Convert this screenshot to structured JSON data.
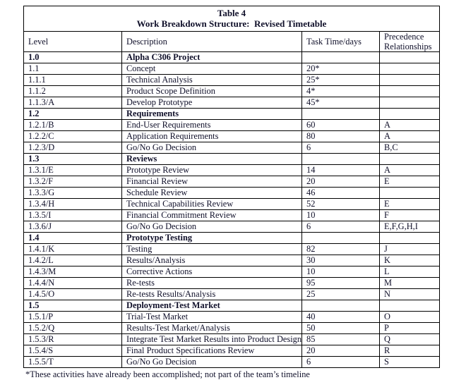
{
  "page": {
    "title_line1": "Table 4",
    "title_line2": "Work Breakdown Structure:  Revised Timetable",
    "footnote": "*These activities have already been accomplished; not part of the team’s timeline"
  },
  "colors": {
    "background": "#ffffff",
    "text": "#10102a",
    "border": "#000000"
  },
  "table": {
    "columns": [
      "Level",
      "Description",
      "Task Time/days",
      "Precedence Relationships"
    ],
    "rows": [
      {
        "level": "1.0",
        "description": "Alpha C306 Project",
        "task_time": "",
        "precedence": "",
        "section": true
      },
      {
        "level": "1.1",
        "description": "Concept",
        "task_time": "20*",
        "precedence": "",
        "section": false
      },
      {
        "level": "1.1.1",
        "description": "Technical Analysis",
        "task_time": "25*",
        "precedence": "",
        "section": false
      },
      {
        "level": "1.1.2",
        "description": "Product Scope Definition",
        "task_time": "4*",
        "precedence": "",
        "section": false
      },
      {
        "level": "1.1.3/A",
        "description": "Develop Prototype",
        "task_time": "45*",
        "precedence": "",
        "section": false
      },
      {
        "level": "1.2",
        "description": "Requirements",
        "task_time": "",
        "precedence": "",
        "section": true
      },
      {
        "level": "1.2.1/B",
        "description": "End-User Requirements",
        "task_time": "60",
        "precedence": "A",
        "section": false
      },
      {
        "level": "1.2.2/C",
        "description": "Application Requirements",
        "task_time": "80",
        "precedence": "A",
        "section": false
      },
      {
        "level": "1.2.3/D",
        "description": "Go/No Go Decision",
        "task_time": "6",
        "precedence": "B,C",
        "section": false
      },
      {
        "level": "1.3",
        "description": "Reviews",
        "task_time": "",
        "precedence": "",
        "section": true
      },
      {
        "level": "1.3.1/E",
        "description": "Prototype Review",
        "task_time": "14",
        "precedence": "A",
        "section": false
      },
      {
        "level": "1.3.2/F",
        "description": "Financial Review",
        "task_time": "20",
        "precedence": "E",
        "section": false
      },
      {
        "level": "1.3.3/G",
        "description": "Schedule Review",
        "task_time": "46",
        "precedence": "",
        "section": false
      },
      {
        "level": "1.3.4/H",
        "description": "Technical Capabilities Review",
        "task_time": "52",
        "precedence": "E",
        "section": false
      },
      {
        "level": "1.3.5/I",
        "description": "Financial Commitment Review",
        "task_time": "10",
        "precedence": "F",
        "section": false
      },
      {
        "level": "1.3.6/J",
        "description": "Go/No Go Decision",
        "task_time": "6",
        "precedence": "E,F,G,H,I",
        "section": false
      },
      {
        "level": "1.4",
        "description": "Prototype Testing",
        "task_time": "",
        "precedence": "",
        "section": true
      },
      {
        "level": "1.4.1/K",
        "description": "Testing",
        "task_time": "82",
        "precedence": "J",
        "section": false
      },
      {
        "level": "1.4.2/L",
        "description": "Results/Analysis",
        "task_time": "30",
        "precedence": "K",
        "section": false
      },
      {
        "level": "1.4.3/M",
        "description": "Corrective Actions",
        "task_time": "10",
        "precedence": "L",
        "section": false
      },
      {
        "level": "1.4.4/N",
        "description": "Re-tests",
        "task_time": "95",
        "precedence": "M",
        "section": false
      },
      {
        "level": "1.4.5/O",
        "description": "Re-tests Results/Analysis",
        "task_time": "25",
        "precedence": "N",
        "section": false
      },
      {
        "level": "1.5",
        "description": "Deployment-Test Market",
        "task_time": "",
        "precedence": "",
        "section": true
      },
      {
        "level": "1.5.1/P",
        "description": "Trial-Test Market",
        "task_time": "40",
        "precedence": "O",
        "section": false
      },
      {
        "level": "1.5.2/Q",
        "description": "Results-Test Market/Analysis",
        "task_time": "50",
        "precedence": "P",
        "section": false
      },
      {
        "level": "1.5.3/R",
        "description": "Integrate Test Market Results into Product Design",
        "task_time": "85",
        "precedence": "Q",
        "section": false
      },
      {
        "level": "1.5.4/S",
        "description": "Final Product Specifications Review",
        "task_time": "20",
        "precedence": "R",
        "section": false
      },
      {
        "level": "1.5.5/T",
        "description": "Go/No Go Decision",
        "task_time": "6",
        "precedence": "S",
        "section": false
      }
    ]
  }
}
